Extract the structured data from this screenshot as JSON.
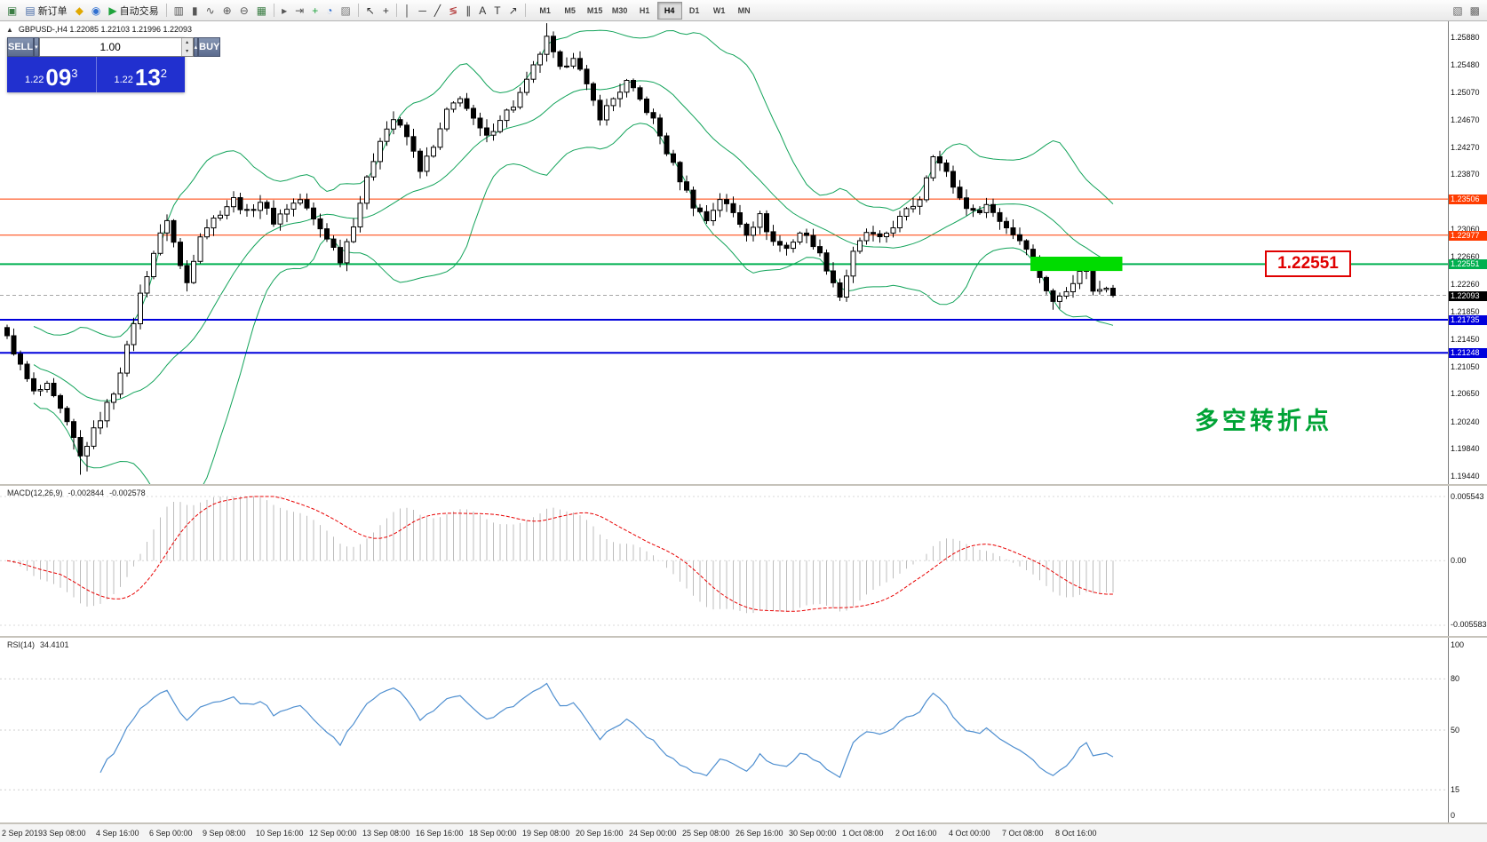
{
  "toolbar": {
    "items": [
      {
        "name": "new-chart-button",
        "glyph": "▣",
        "color": "#3a7d44"
      },
      {
        "name": "new-order-button",
        "glyph": "▤",
        "color": "#4a6da8",
        "label": "新订单"
      },
      {
        "name": "metaeditor-button",
        "glyph": "◆",
        "color": "#e0a800"
      },
      {
        "name": "community-button",
        "glyph": "◉",
        "color": "#2f6fd0"
      },
      {
        "name": "autotrading-button",
        "glyph": "▶",
        "color": "#1fa33c",
        "label": "自动交易"
      },
      {
        "divider": true
      },
      {
        "name": "bar-chart-button",
        "glyph": "▥",
        "color": "#555555"
      },
      {
        "name": "candlestick-chart-button",
        "glyph": "▮",
        "color": "#555555"
      },
      {
        "name": "line-chart-button",
        "glyph": "∿",
        "color": "#555555"
      },
      {
        "name": "zoom-in-button",
        "glyph": "⊕",
        "color": "#555555"
      },
      {
        "name": "zoom-out-button",
        "glyph": "⊖",
        "color": "#555555"
      },
      {
        "name": "tile-windows-button",
        "glyph": "▦",
        "color": "#3a7d44"
      },
      {
        "divider": true
      },
      {
        "name": "auto-scroll-button",
        "glyph": "▸",
        "color": "#555555"
      },
      {
        "name": "chart-shift-button",
        "glyph": "⇥",
        "color": "#555555"
      },
      {
        "name": "indicators-button",
        "glyph": "+",
        "color": "#1fa33c"
      },
      {
        "name": "periods-button",
        "glyph": "◔",
        "color": "#2f6fd0"
      },
      {
        "name": "templates-button",
        "glyph": "▨",
        "color": "#777777"
      },
      {
        "divider": true
      },
      {
        "name": "cursor-button",
        "glyph": "↖",
        "color": "#333333"
      },
      {
        "name": "crosshair-button",
        "glyph": "+",
        "color": "#333333"
      },
      {
        "divider": true
      },
      {
        "name": "vertical-line-button",
        "glyph": "│",
        "color": "#333333"
      },
      {
        "name": "horizontal-line-button",
        "glyph": "─",
        "color": "#333333"
      },
      {
        "name": "trendline-button",
        "glyph": "╱",
        "color": "#333333"
      },
      {
        "name": "fibonacci-button",
        "glyph": "≶",
        "color": "#b03030"
      },
      {
        "name": "channel-button",
        "glyph": "∥",
        "color": "#333333"
      },
      {
        "name": "text-button",
        "glyph": "A",
        "color": "#333333"
      },
      {
        "name": "label-button",
        "glyph": "T",
        "color": "#333333"
      },
      {
        "name": "arrows-button",
        "glyph": "↗",
        "color": "#333333"
      },
      {
        "divider": true
      }
    ],
    "timeframes": [
      "M1",
      "M5",
      "M15",
      "M30",
      "H1",
      "H4",
      "D1",
      "W1",
      "MN"
    ],
    "active_timeframe": "H4",
    "right_icons": [
      {
        "name": "data-window-button",
        "glyph": "▧",
        "color": "#666666"
      },
      {
        "name": "chart-list-button",
        "glyph": "▩",
        "color": "#666666"
      }
    ]
  },
  "one_click": {
    "sell_label": "SELL",
    "buy_label": "BUY",
    "volume": "1.00",
    "sell_price_small": "1.22",
    "sell_price_big": "09",
    "sell_price_sup": "3",
    "buy_price_small": "1.22",
    "buy_price_big": "13",
    "buy_price_sup": "2"
  },
  "chart": {
    "info_line": "GBPUSD-,H4  1.22085 1.22103 1.21996 1.22093",
    "symbol": "GBPUSD-",
    "timeframe": "H4",
    "ohlc": [
      "1.22085",
      "1.22103",
      "1.21996",
      "1.22093"
    ],
    "axis_ticks": [
      "1.25880",
      "1.25480",
      "1.25070",
      "1.24670",
      "1.24270",
      "1.23870",
      "1.23060",
      "1.22660",
      "1.22260",
      "1.21850",
      "1.21450",
      "1.21050",
      "1.20650",
      "1.20240",
      "1.19840",
      "1.19440"
    ],
    "levels": [
      {
        "price": 1.23506,
        "label": "1.23506",
        "color": "#ff3c00",
        "width": 1,
        "dash": ""
      },
      {
        "price": 1.22977,
        "label": "1.22977",
        "color": "#ff3c00",
        "width": 1,
        "dash": ""
      },
      {
        "price": 1.22551,
        "label": "1.22551",
        "color": "#00b050",
        "width": 2,
        "dash": ""
      },
      {
        "price": 1.22093,
        "label": "1.22093",
        "color": "#000000",
        "line_color": "#a8a8a8",
        "width": 1,
        "dash": "4 3"
      },
      {
        "price": 1.21735,
        "label": "1.21735",
        "color": "#0000dc",
        "width": 2,
        "dash": ""
      },
      {
        "price": 1.21248,
        "label": "1.21248",
        "color": "#0000dc",
        "width": 2,
        "dash": ""
      }
    ],
    "highlight_zone": {
      "bar_start": 154,
      "bar_end": 167,
      "price_top": 1.2266,
      "price_bottom": 1.2245,
      "color": "#00dc00"
    },
    "price_box": {
      "text": "1.22551",
      "border_color": "#e00000",
      "text_color": "#e00000"
    },
    "annotation": {
      "text": "多空转折点",
      "color": "#00a335"
    }
  },
  "macd": {
    "title": "MACD(12,26,9)",
    "value_main": "-0.002844",
    "value_signal": "-0.002578",
    "scale_labels": [
      "0.005543",
      "0.00",
      "-0.005583"
    ],
    "histogram_color": "#bdbdbd",
    "signal_color": "#e80000"
  },
  "rsi": {
    "title": "RSI(14)",
    "value": "34.4101",
    "line_color": "#4f8fd0",
    "scale_labels": [
      "100",
      "80",
      "50",
      "15",
      "0"
    ]
  },
  "colors": {
    "candle_up": "#ffffff",
    "candle_down": "#000000",
    "candle_border": "#000000",
    "bollinger": "#12a35a",
    "background": "#ffffff"
  },
  "chart_data": {
    "type": "candlestick",
    "symbol": "GBPUSD-",
    "timeframe": "H4",
    "bars": 167,
    "bar_spacing_px": 7.5,
    "first_bar_x": 8,
    "y_range": [
      1.19323,
      1.26115
    ],
    "bars_per_label": 8,
    "x_labels": [
      "2 Sep 2019",
      "3 Sep 08:00",
      "4 Sep 16:00",
      "6 Sep 00:00",
      "9 Sep 08:00",
      "10 Sep 16:00",
      "12 Sep 00:00",
      "13 Sep 08:00",
      "16 Sep 16:00",
      "18 Sep 00:00",
      "19 Sep 08:00",
      "20 Sep 16:00",
      "24 Sep 00:00",
      "25 Sep 08:00",
      "26 Sep 16:00",
      "30 Sep 00:00",
      "1 Oct 08:00",
      "2 Oct 16:00",
      "4 Oct 00:00",
      "7 Oct 08:00",
      "8 Oct 16:00"
    ],
    "close_anchors": [
      [
        0,
        1.215
      ],
      [
        2,
        1.2105
      ],
      [
        4,
        1.2066
      ],
      [
        6,
        1.2075
      ],
      [
        8,
        1.204
      ],
      [
        10,
        1.1998
      ],
      [
        11,
        1.1972
      ],
      [
        13,
        1.201
      ],
      [
        16,
        1.2068
      ],
      [
        18,
        1.2132
      ],
      [
        20,
        1.221
      ],
      [
        22,
        1.2272
      ],
      [
        24,
        1.2322
      ],
      [
        26,
        1.2252
      ],
      [
        27,
        1.2228
      ],
      [
        29,
        1.23
      ],
      [
        32,
        1.2332
      ],
      [
        34,
        1.235
      ],
      [
        36,
        1.233
      ],
      [
        38,
        1.2348
      ],
      [
        40,
        1.2318
      ],
      [
        42,
        1.2338
      ],
      [
        44,
        1.235
      ],
      [
        46,
        1.232
      ],
      [
        48,
        1.2295
      ],
      [
        50,
        1.2262
      ],
      [
        52,
        1.2315
      ],
      [
        54,
        1.2378
      ],
      [
        56,
        1.244
      ],
      [
        58,
        1.2468
      ],
      [
        60,
        1.2442
      ],
      [
        62,
        1.2395
      ],
      [
        64,
        1.2425
      ],
      [
        66,
        1.2478
      ],
      [
        68,
        1.2502
      ],
      [
        70,
        1.2465
      ],
      [
        72,
        1.244
      ],
      [
        74,
        1.247
      ],
      [
        76,
        1.2488
      ],
      [
        78,
        1.2522
      ],
      [
        80,
        1.2565
      ],
      [
        81,
        1.2585
      ],
      [
        83,
        1.254
      ],
      [
        85,
        1.2562
      ],
      [
        87,
        1.2515
      ],
      [
        89,
        1.2472
      ],
      [
        91,
        1.2498
      ],
      [
        93,
        1.2522
      ],
      [
        95,
        1.2496
      ],
      [
        97,
        1.2466
      ],
      [
        99,
        1.242
      ],
      [
        101,
        1.238
      ],
      [
        103,
        1.2342
      ],
      [
        105,
        1.232
      ],
      [
        107,
        1.2352
      ],
      [
        109,
        1.233
      ],
      [
        111,
        1.2302
      ],
      [
        113,
        1.2325
      ],
      [
        115,
        1.2288
      ],
      [
        117,
        1.2278
      ],
      [
        119,
        1.2302
      ],
      [
        121,
        1.2286
      ],
      [
        123,
        1.225
      ],
      [
        125,
        1.2208
      ],
      [
        127,
        1.227
      ],
      [
        129,
        1.2302
      ],
      [
        131,
        1.229
      ],
      [
        133,
        1.2312
      ],
      [
        135,
        1.2332
      ],
      [
        137,
        1.2352
      ],
      [
        139,
        1.2418
      ],
      [
        141,
        1.2388
      ],
      [
        143,
        1.2352
      ],
      [
        145,
        1.233
      ],
      [
        147,
        1.2342
      ],
      [
        149,
        1.232
      ],
      [
        151,
        1.23
      ],
      [
        153,
        1.2282
      ],
      [
        155,
        1.2238
      ],
      [
        157,
        1.2198
      ],
      [
        159,
        1.222
      ],
      [
        161,
        1.2242
      ],
      [
        162,
        1.2256
      ],
      [
        163,
        1.2214
      ],
      [
        165,
        1.2224
      ],
      [
        166,
        1.22093
      ]
    ],
    "wick_extensions": [
      {
        "bar": 10,
        "low_extra": 0.0015
      },
      {
        "bar": 11,
        "low_extra": 0.0022
      },
      {
        "bar": 12,
        "low_extra": 0.0012
      },
      {
        "bar": 81,
        "high_extra": 0.0008
      }
    ],
    "last_close": 1.22093,
    "bollinger": {
      "period": 20,
      "deviation": 2
    },
    "macd": {
      "fast": 12,
      "slow": 26,
      "signal": 9,
      "scale_max": 0.005543,
      "scale_min": -0.005583
    },
    "rsi": {
      "period": 14,
      "levels": [
        80,
        50,
        15
      ],
      "scale": [
        0,
        100
      ]
    }
  }
}
